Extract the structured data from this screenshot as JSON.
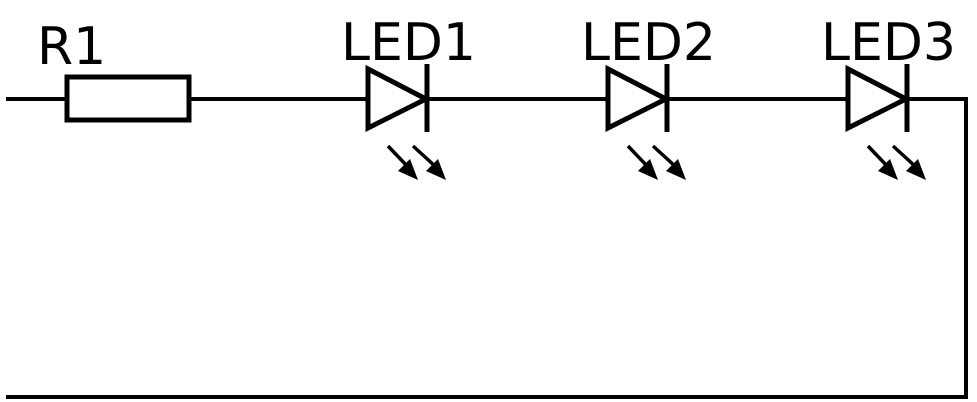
{
  "diagram": {
    "colors": {
      "line": "#000000",
      "background": "#ffffff"
    },
    "components": {
      "resistor": {
        "label": "R1"
      },
      "led1": {
        "label": "LED1"
      },
      "led2": {
        "label": "LED2"
      },
      "led3": {
        "label": "LED3"
      }
    }
  }
}
